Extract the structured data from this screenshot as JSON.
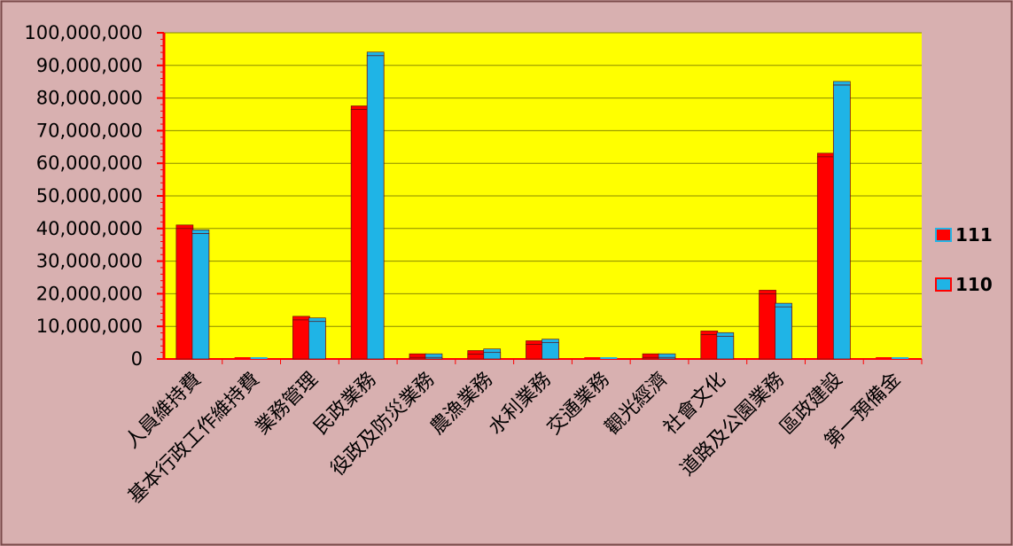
{
  "chart_data": {
    "type": "bar",
    "title": "",
    "xlabel": "",
    "ylabel": "",
    "ylim": [
      0,
      100000000
    ],
    "ytick_labels": [
      "0",
      "10,000,000",
      "20,000,000",
      "30,000,000",
      "40,000,000",
      "50,000,000",
      "60,000,000",
      "70,000,000",
      "80,000,000",
      "90,000,000",
      "100,000,000"
    ],
    "yticks": [
      0,
      10000000,
      20000000,
      30000000,
      40000000,
      50000000,
      60000000,
      70000000,
      80000000,
      90000000,
      100000000
    ],
    "grid": true,
    "legend_position": "right",
    "categories": [
      "人員維持費",
      "基本行政工作維持費",
      "業務管理",
      "民政業務",
      "役政及防災業務",
      "農漁業務",
      "水利業務",
      "交通業務",
      "觀光經濟",
      "社會文化",
      "道路及公園業務",
      "區政建設",
      "第一預備金"
    ],
    "series": [
      {
        "name": "111",
        "color": "#ff0000",
        "values": [
          40000000,
          0,
          12000000,
          76500000,
          500000,
          1500000,
          4500000,
          0,
          500000,
          7500000,
          20000000,
          62000000,
          0
        ]
      },
      {
        "name": "110",
        "color": "#1fb4e6",
        "values": [
          38500000,
          0,
          11500000,
          93000000,
          500000,
          2000000,
          5000000,
          0,
          500000,
          7000000,
          16000000,
          84000000,
          0
        ]
      }
    ],
    "colors": {
      "plot_background": "#ffff00",
      "frame_background": "#d8b0b0",
      "axis": "#ff0000",
      "gridline": "#8a8a00"
    }
  }
}
